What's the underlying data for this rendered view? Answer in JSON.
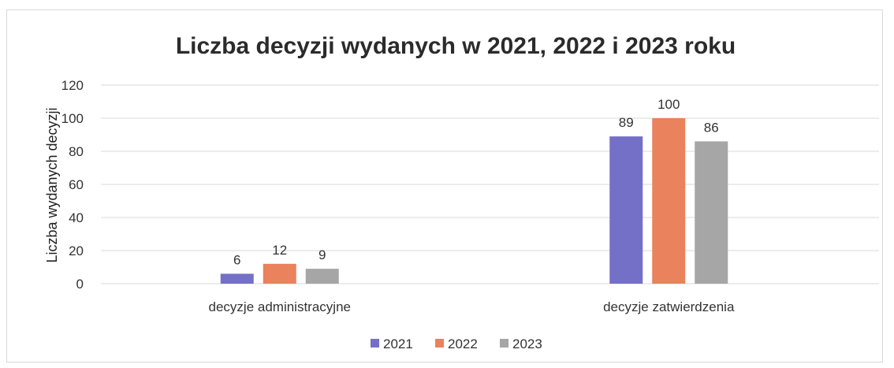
{
  "chart_data": {
    "type": "bar",
    "title": "Liczba decyzji wydanych w 2021, 2022 i 2023 roku",
    "xlabel": "",
    "ylabel": "Liczba wydanych decyzji",
    "categories": [
      "decyzje administracyjne",
      "decyzje zatwierdzenia"
    ],
    "series": [
      {
        "name": "2021",
        "values": [
          6,
          89
        ],
        "color": "#7570c7"
      },
      {
        "name": "2022",
        "values": [
          12,
          100
        ],
        "color": "#e9825d"
      },
      {
        "name": "2023",
        "values": [
          9,
          86
        ],
        "color": "#a6a6a6"
      }
    ],
    "yticks": [
      "0",
      "20",
      "40",
      "60",
      "80",
      "100",
      "120"
    ],
    "ylim": [
      0,
      120
    ],
    "grid": true,
    "legend": "bottom"
  }
}
